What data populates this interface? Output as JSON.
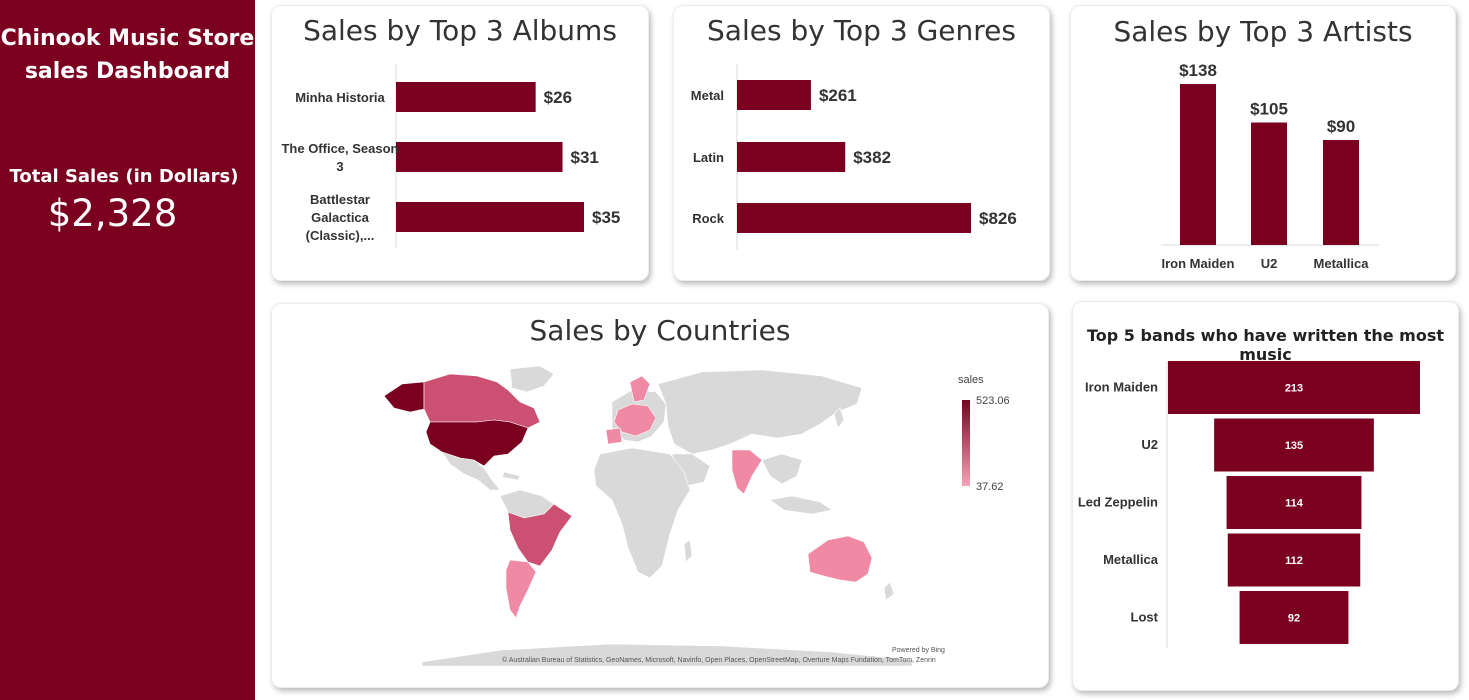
{
  "sidebar": {
    "title_line1": "Chinook Music Store",
    "title_line2": "sales Dashboard",
    "total_label": "Total Sales (in Dollars)",
    "total_value": "$2,328"
  },
  "colors": {
    "accent": "#7b0020",
    "map_mid": "#cc5071",
    "map_light": "#f08aa4",
    "land": "#d9d9d9"
  },
  "chart_data": [
    {
      "id": "albums",
      "type": "bar",
      "orientation": "horizontal",
      "title": "Sales by Top 3 Albums",
      "categories": [
        [
          "Minha Historia"
        ],
        [
          "The Office, Season",
          "3"
        ],
        [
          "Battlestar",
          "Galactica",
          "(Classic),..."
        ]
      ],
      "values": [
        26,
        31,
        35
      ],
      "labels": [
        "$26",
        "$31",
        "$35"
      ]
    },
    {
      "id": "genres",
      "type": "bar",
      "orientation": "horizontal",
      "title": "Sales by Top 3 Genres",
      "categories": [
        "Metal",
        "Latin",
        "Rock"
      ],
      "values": [
        261,
        382,
        826
      ],
      "labels": [
        "$261",
        "$382",
        "$826"
      ]
    },
    {
      "id": "artists",
      "type": "bar",
      "orientation": "vertical",
      "title": "Sales by Top 3 Artists",
      "categories": [
        "Iron Maiden",
        "U2",
        "Metallica"
      ],
      "values": [
        138,
        105,
        90
      ],
      "labels": [
        "$138",
        "$105",
        "$90"
      ]
    },
    {
      "id": "countries",
      "type": "map",
      "title": "Sales by Countries",
      "legend_title": "sales",
      "legend_max": "523.06",
      "legend_min": "37.62",
      "credit_bing": "Powered by Bing",
      "credit_sources": "© Australian Bureau of Statistics, GeoNames, Microsoft, Navinfo, Open Places, OpenStreetMap, Overture Maps Fundation, TomTom, Zenrin"
    },
    {
      "id": "bands",
      "type": "funnel",
      "title": "Top 5 bands who have written the most music",
      "categories": [
        "Iron Maiden",
        "U2",
        "Led Zeppelin",
        "Metallica",
        "Lost"
      ],
      "values": [
        213,
        135,
        114,
        112,
        92
      ]
    }
  ]
}
